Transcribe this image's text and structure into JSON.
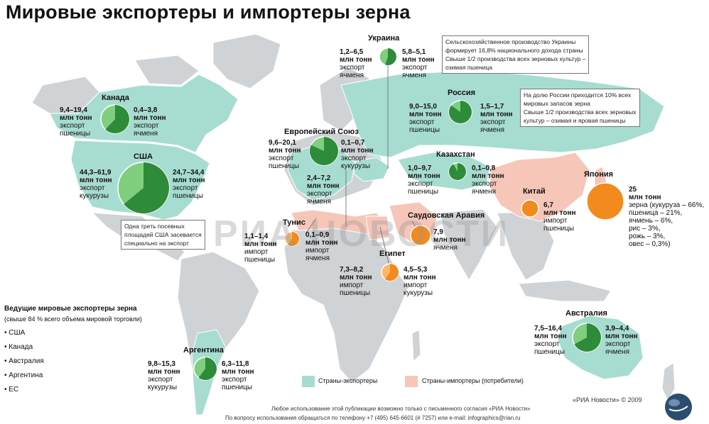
{
  "title": "Мировые экспортеры и импортеры зерна",
  "colors": {
    "exporter_fill": "#a7ddd0",
    "importer_fill": "#f6c6b8",
    "land_fill": "#d0d3d6",
    "ocean": "#ffffff",
    "export_pie": "#2e8b3a",
    "export_pie_light": "#7fcf7e",
    "import_pie": "#f28a1e",
    "import_pie_light": "#fbb86a"
  },
  "countries": {
    "ukraine": {
      "name": "Украина",
      "left": {
        "value": "1,2–6,5",
        "unit": "млн тонн",
        "l1": "экспорт",
        "l2": "ячменя"
      },
      "right": {
        "value": "5,8–5,1",
        "unit": "млн тонн",
        "l1": "экспорт",
        "l2": "ячменя"
      }
    },
    "russia": {
      "name": "Россия",
      "left": {
        "value": "9,0–15,0",
        "unit": "млн тонн",
        "l1": "экспорт",
        "l2": "пшеницы"
      },
      "right": {
        "value": "1,5–1,7",
        "unit": "млн тонн",
        "l1": "экспорт",
        "l2": "ячменя"
      }
    },
    "kazakhstan": {
      "name": "Казахстан",
      "left": {
        "value": "1,0–9,7",
        "unit": "млн тонн",
        "l1": "экспорт",
        "l2": "пшеницы"
      },
      "right": {
        "value": "0,1–0,8",
        "unit": "млн тонн",
        "l1": "экспорт",
        "l2": "ячменя"
      }
    },
    "canada": {
      "name": "Канада",
      "left": {
        "value": "9,4–19,4",
        "unit": "млн тонн",
        "l1": "экспорт",
        "l2": "пшеницы"
      },
      "right": {
        "value": "0,4–3,8",
        "unit": "млн тонн",
        "l1": "экспорт",
        "l2": "ячменя"
      }
    },
    "usa": {
      "name": "США",
      "left": {
        "value": "44,3–61,9",
        "unit": "млн тонн",
        "l1": "экспорт",
        "l2": "кукурузы"
      },
      "right": {
        "value": "24,7–34,4",
        "unit": "млн тонн",
        "l1": "экспорт",
        "l2": "пшеницы"
      },
      "note": [
        "Одна треть посевных",
        "площадей США засевается",
        "специально на экспорт"
      ]
    },
    "eu": {
      "name": "Европейский Союз",
      "left": {
        "value": "9,6–20,1",
        "unit": "млн тонн",
        "l1": "экспорт",
        "l2": "пшеницы"
      },
      "right": {
        "value": "0,1–0,7",
        "unit": "млн тонн",
        "l1": "экспорт",
        "l2": "кукурузы"
      },
      "bottom": {
        "value": "2,4–7,2",
        "unit": "млн тонн",
        "l1": "экспорт",
        "l2": "ячменя"
      }
    },
    "tunisia": {
      "name": "Тунис",
      "left": {
        "value": "1,1–1,4",
        "unit": "млн тонн",
        "l1": "импорт",
        "l2": "пшеницы"
      },
      "right": {
        "value": "0,1–0,9",
        "unit": "млн тонн",
        "l1": "импорт",
        "l2": "ячменя"
      }
    },
    "saudi": {
      "name": "Саудовская Аравия",
      "right": {
        "value": "7,9",
        "unit": "млн тонн",
        "l1": "ячменя",
        "l2": ""
      }
    },
    "egypt": {
      "name": "Египет",
      "left": {
        "value": "7,3–8,2",
        "unit": "млн тонн",
        "l1": "импорт",
        "l2": "пшеницы"
      },
      "right": {
        "value": "4,5–5,3",
        "unit": "млн тонн",
        "l1": "импорт",
        "l2": "кукурузы"
      }
    },
    "china": {
      "name": "Китай",
      "right": {
        "value": "6,7",
        "unit": "млн тонн",
        "l1": "импорт",
        "l2": "пшеницы"
      }
    },
    "japan": {
      "name": "Япония",
      "value": "25",
      "unit": "млн тонн",
      "lines": [
        "зерна (кукуруза – 66%,",
        "пшеница – 21%,",
        "ячмень – 6%,",
        "рис – 3%,",
        "рожь – 3%,",
        "овес – 0,3%)"
      ]
    },
    "australia": {
      "name": "Австралия",
      "left": {
        "value": "7,5–16,4",
        "unit": "млн тонн",
        "l1": "экспорт",
        "l2": "пшеницы"
      },
      "right": {
        "value": "3,9–4,4",
        "unit": "млн тонн",
        "l1": "экспорт",
        "l2": "ячменя"
      }
    },
    "argentina": {
      "name": "Аргентина",
      "left": {
        "value": "9,8–15,3",
        "unit": "млн тонн",
        "l1": "экспорт",
        "l2": "кукурузы"
      },
      "right": {
        "value": "6,3–11,8",
        "unit": "млн тонн",
        "l1": "экспорт",
        "l2": "пшеницы"
      }
    }
  },
  "notes": {
    "ukraine": [
      "Сельскохозяйственное производство Украины",
      "формирует 16,8% национального дохода страны",
      "Свыше 1/2 производства всех зерновых культур –",
      "озимая пшеница"
    ],
    "russia": [
      "На долю России приходится 10% всех",
      "мировых запасов зерна",
      "Свыше 1/2 производства всех зерновых",
      "культур – озимая и яровая пшеницы"
    ]
  },
  "exporters_list": {
    "title": "Ведущие мировые экспортеры зерна",
    "subtitle": "(свыше 84 % всего объема мировой торговли)",
    "items": [
      "США",
      "Канада",
      "Австралия",
      "Аргентина",
      "ЕС"
    ]
  },
  "legend": {
    "exporters": "Страны-экспортеры",
    "importers": "Страны-импортеры (потребители)"
  },
  "footer": {
    "credit": "«РИА Новости» © 2009",
    "line1": "Любое использование этой публикации возможно только с письменного согласия «РИА Новости»",
    "line2": "По вопросу использования обращаться по телефону +7 (495) 645-6601 (# 7257) или e-mail: infographics@rian.ru"
  },
  "watermark": "РИА НОВОСТИ",
  "pies": [
    {
      "id": "canada",
      "share": 0.62,
      "color": "export"
    },
    {
      "id": "usa",
      "share": 0.64,
      "color": "export"
    },
    {
      "id": "eu",
      "share": 0.82,
      "color": "export"
    },
    {
      "id": "ukraine",
      "share": 0.55,
      "color": "export"
    },
    {
      "id": "russia",
      "share": 0.85,
      "color": "export"
    },
    {
      "id": "kazakhstan",
      "share": 0.92,
      "color": "export"
    },
    {
      "id": "tunisia",
      "share": 0.6,
      "color": "import"
    },
    {
      "id": "saudi",
      "share": 1.0,
      "color": "import"
    },
    {
      "id": "egypt",
      "share": 0.6,
      "color": "import"
    },
    {
      "id": "china",
      "share": 1.0,
      "color": "import"
    },
    {
      "id": "japan",
      "share": 1.0,
      "color": "import"
    },
    {
      "id": "australia",
      "share": 0.67,
      "color": "export"
    },
    {
      "id": "argentina",
      "share": 0.6,
      "color": "export"
    }
  ]
}
